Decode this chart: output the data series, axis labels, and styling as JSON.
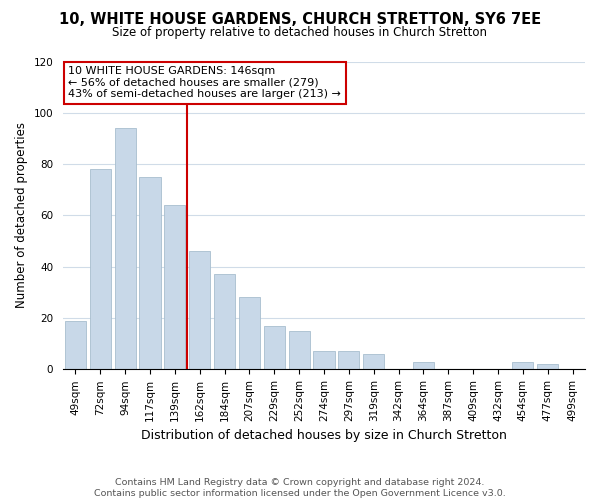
{
  "title": "10, WHITE HOUSE GARDENS, CHURCH STRETTON, SY6 7EE",
  "subtitle": "Size of property relative to detached houses in Church Stretton",
  "xlabel": "Distribution of detached houses by size in Church Stretton",
  "ylabel": "Number of detached properties",
  "categories": [
    "49sqm",
    "72sqm",
    "94sqm",
    "117sqm",
    "139sqm",
    "162sqm",
    "184sqm",
    "207sqm",
    "229sqm",
    "252sqm",
    "274sqm",
    "297sqm",
    "319sqm",
    "342sqm",
    "364sqm",
    "387sqm",
    "409sqm",
    "432sqm",
    "454sqm",
    "477sqm",
    "499sqm"
  ],
  "values": [
    19,
    78,
    94,
    75,
    64,
    46,
    37,
    28,
    17,
    15,
    7,
    7,
    6,
    0,
    3,
    0,
    0,
    0,
    3,
    2,
    0
  ],
  "bar_color": "#c8d8e8",
  "bar_edgecolor": "#a8bece",
  "vline_x": 4.5,
  "vline_color": "#cc0000",
  "annotation_text": "10 WHITE HOUSE GARDENS: 146sqm\n← 56% of detached houses are smaller (279)\n43% of semi-detached houses are larger (213) →",
  "annotation_box_edgecolor": "#cc0000",
  "ylim": [
    0,
    120
  ],
  "yticks": [
    0,
    20,
    40,
    60,
    80,
    100,
    120
  ],
  "footer_line1": "Contains HM Land Registry data © Crown copyright and database right 2024.",
  "footer_line2": "Contains public sector information licensed under the Open Government Licence v3.0.",
  "background_color": "#ffffff",
  "grid_color": "#d0dce8",
  "title_fontsize": 10.5,
  "subtitle_fontsize": 8.5,
  "ylabel_fontsize": 8.5,
  "xlabel_fontsize": 9,
  "tick_fontsize": 7.5,
  "annotation_fontsize": 8,
  "footer_fontsize": 6.8
}
